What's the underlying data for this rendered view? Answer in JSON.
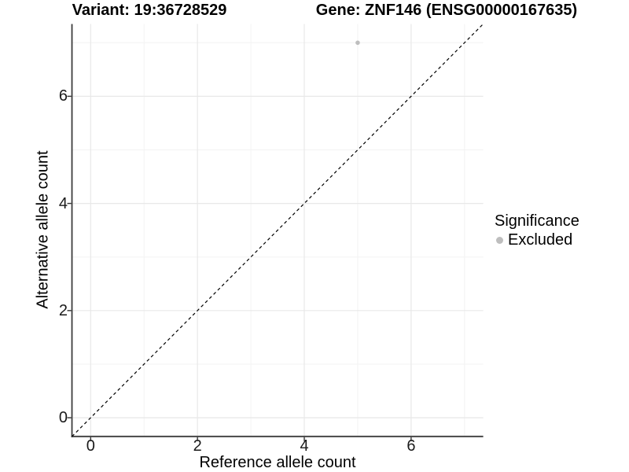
{
  "header": {
    "variant_title": "Variant: 19:36728529",
    "gene_title": "Gene: ZNF146 (ENSG00000167635)"
  },
  "axes": {
    "x": {
      "label": "Reference allele count",
      "tick_labels": [
        "0",
        "2",
        "4",
        "6"
      ]
    },
    "y": {
      "label": "Alternative allele count",
      "tick_labels": [
        "0",
        "2",
        "4",
        "6"
      ]
    }
  },
  "legend": {
    "title": "Significance",
    "items": [
      {
        "label": "Excluded",
        "color": "#bebebe"
      }
    ]
  },
  "colors": {
    "point": "#bebebe",
    "grid_major": "#e8e8e8",
    "grid_minor": "#f3f3f3",
    "axis_line": "#3c3c3c",
    "tick": "#333333",
    "identity_line": "#000000"
  },
  "chart_data": {
    "type": "scatter",
    "title_left": "Variant: 19:36728529",
    "title_right": "Gene: ZNF146 (ENSG00000167635)",
    "xlabel": "Reference allele count",
    "ylabel": "Alternative allele count",
    "xlim": [
      -0.35,
      7.35
    ],
    "ylim": [
      -0.35,
      7.35
    ],
    "x_ticks": [
      0,
      2,
      4,
      6
    ],
    "y_ticks": [
      0,
      2,
      4,
      6
    ],
    "grid_major": [
      0,
      2,
      4,
      6
    ],
    "grid_minor": [
      1,
      3,
      5,
      7
    ],
    "grid": true,
    "legend_position": "right",
    "series": [
      {
        "name": "Excluded",
        "color": "#bebebe",
        "points": [
          {
            "x": 5,
            "y": 7
          }
        ]
      }
    ],
    "reference_line": {
      "type": "identity (y = x)",
      "style": "dashed",
      "color": "#000000",
      "from": [
        -0.35,
        -0.35
      ],
      "to": [
        7.35,
        7.35
      ]
    }
  }
}
